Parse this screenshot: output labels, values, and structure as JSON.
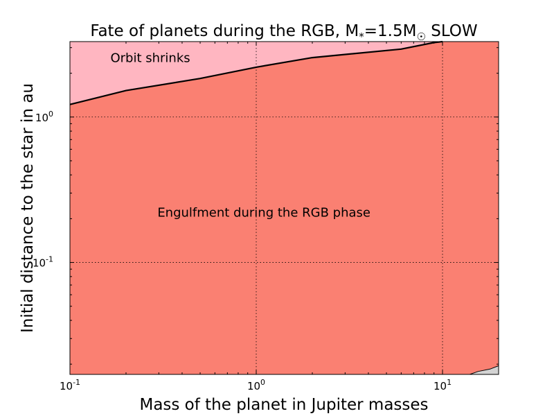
{
  "chart_data": {
    "type": "area",
    "title": "Fate of planets during the RGB, M",
    "title_sub": "*",
    "title_mid": "=1.5M",
    "title_sun": "☉",
    "title_end": " SLOW",
    "xlabel": "Mass of the planet in Jupiter masses",
    "ylabel": "Initial distance to the star in au",
    "xscale": "log",
    "yscale": "log",
    "xlim": [
      0.1,
      20
    ],
    "ylim": [
      0.017,
      3.3
    ],
    "grid": true,
    "x_ticks": [
      {
        "value": 0.1,
        "base": "10",
        "exp": "-1"
      },
      {
        "value": 1,
        "base": "10",
        "exp": "0"
      },
      {
        "value": 10,
        "base": "10",
        "exp": "1"
      }
    ],
    "y_ticks": [
      {
        "value": 0.1,
        "base": "10",
        "exp": "-1"
      },
      {
        "value": 1,
        "base": "10",
        "exp": "0"
      }
    ],
    "boundary_orbit_shrinks": {
      "x": [
        0.1,
        0.2,
        0.5,
        1.0,
        2.0,
        6.0,
        9.0,
        10.0
      ],
      "y": [
        1.22,
        1.52,
        1.84,
        2.2,
        2.56,
        2.93,
        3.25,
        3.3
      ]
    },
    "boundary_other": {
      "x": [
        14.0,
        15.5,
        18.0,
        20.0
      ],
      "y": [
        0.017,
        0.0178,
        0.0185,
        0.0195
      ]
    },
    "regions": [
      {
        "name": "Orbit shrinks",
        "color": "#ffb6c1"
      },
      {
        "name": "Engulfment during the RGB phase",
        "color": "#fa8072"
      },
      {
        "name": "",
        "color": "#d3d3d3"
      }
    ],
    "annotations": [
      {
        "text": "Orbit shrinks",
        "x": 0.27,
        "y": 2.55
      },
      {
        "text": "Engulfment during the RGB phase",
        "x": 1.1,
        "y": 0.22
      }
    ]
  }
}
